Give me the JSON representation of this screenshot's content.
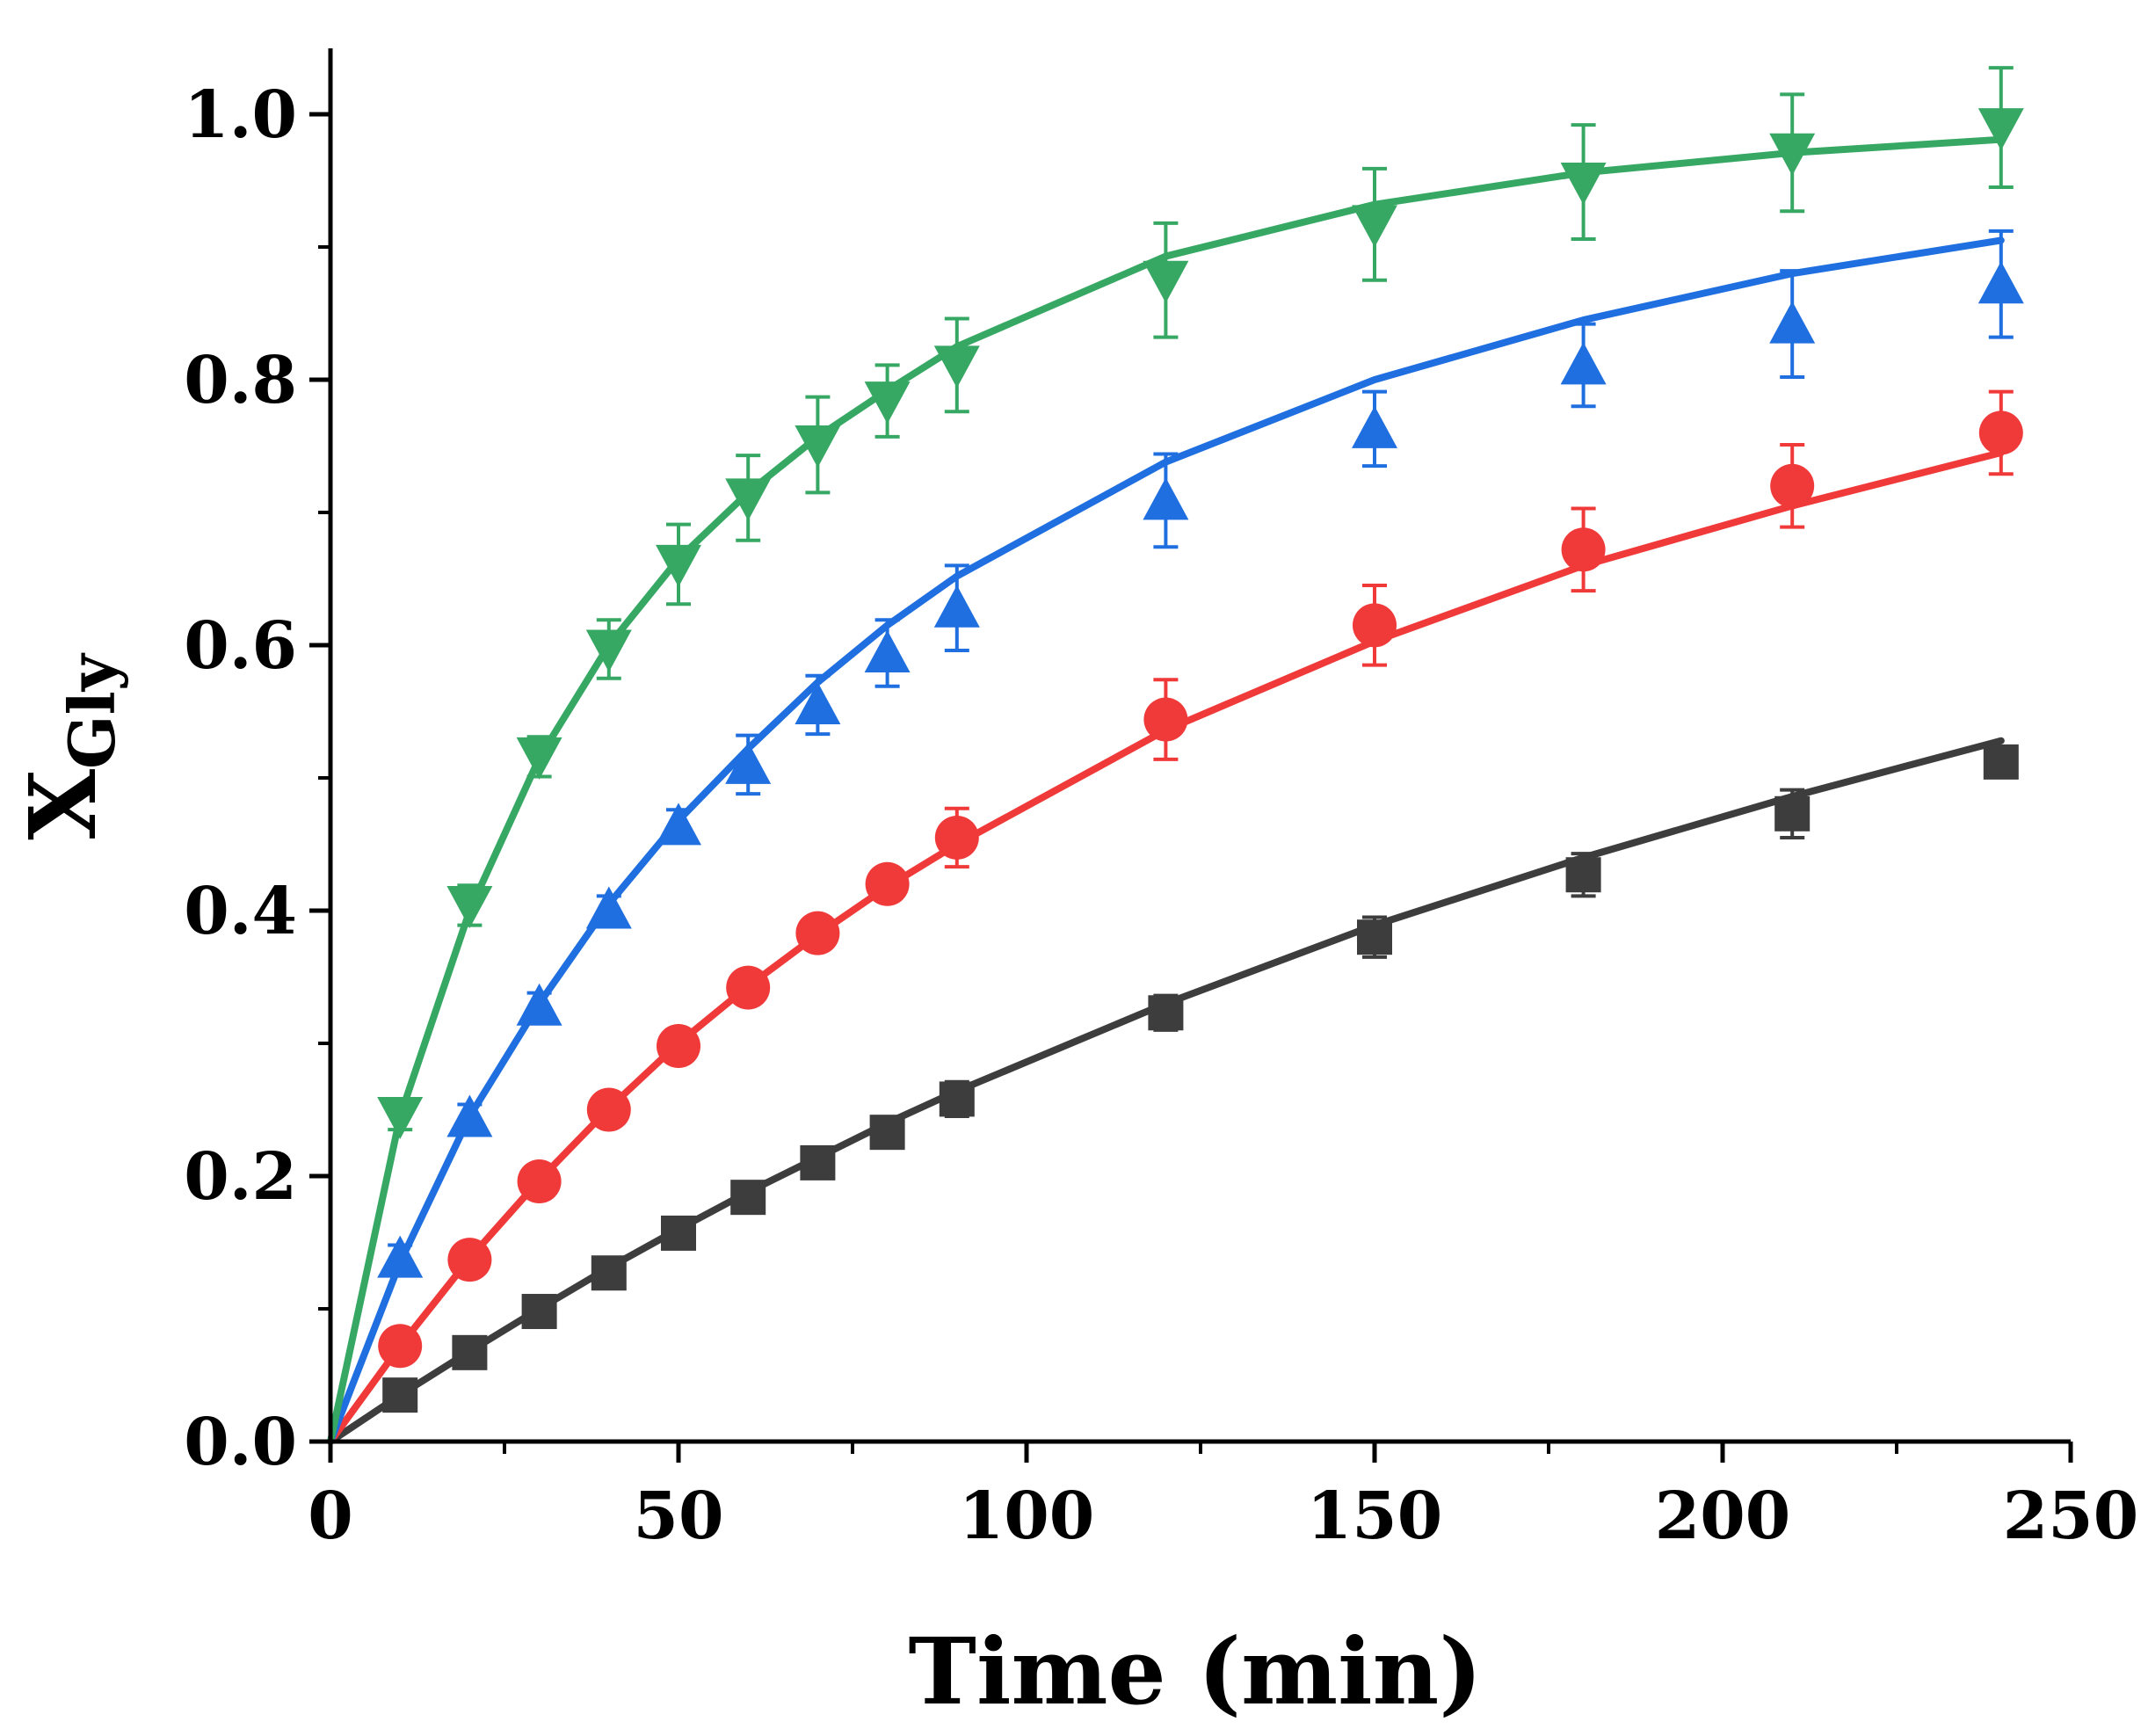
{
  "chart_data": {
    "type": "line",
    "title": "",
    "xlabel": "Time (min)",
    "ylabel": {
      "main": "X",
      "sub": "Gly"
    },
    "xlim": [
      0,
      250
    ],
    "ylim": [
      0,
      1.05
    ],
    "x_major_ticks": [
      0,
      50,
      100,
      150,
      200,
      250
    ],
    "x_tick_labels": [
      "0",
      "50",
      "100",
      "150",
      "200",
      "250"
    ],
    "y_major_ticks": [
      0,
      0.2,
      0.4,
      0.6,
      0.8,
      1.0
    ],
    "y_tick_labels": [
      "0.0",
      "0.2",
      "0.4",
      "0.6",
      "0.8",
      "1.0"
    ],
    "grid": false,
    "legend": "none",
    "series": [
      {
        "name": "series-black",
        "color": "#3d3d3d",
        "marker": "square",
        "x": [
          10,
          20,
          30,
          40,
          50,
          60,
          70,
          80,
          90,
          120,
          150,
          180,
          210,
          240
        ],
        "y": [
          0.035,
          0.067,
          0.098,
          0.127,
          0.157,
          0.184,
          0.21,
          0.233,
          0.258,
          0.323,
          0.38,
          0.427,
          0.473,
          0.512
        ],
        "err": [
          0.01,
          0.01,
          0.01,
          0.01,
          0.01,
          0.01,
          0.01,
          0.01,
          0.013,
          0.013,
          0.015,
          0.016,
          0.018,
          0.01
        ],
        "fit_x": [
          0,
          10,
          20,
          30,
          40,
          50,
          60,
          70,
          80,
          90,
          120,
          150,
          180,
          210,
          240
        ],
        "fit_y": [
          0,
          0.035,
          0.068,
          0.1,
          0.131,
          0.16,
          0.188,
          0.214,
          0.24,
          0.264,
          0.33,
          0.389,
          0.44,
          0.486,
          0.528
        ]
      },
      {
        "name": "series-red",
        "color": "#f03a3a",
        "marker": "circle",
        "x": [
          10,
          20,
          30,
          40,
          50,
          60,
          70,
          80,
          90,
          120,
          150,
          180,
          210,
          240
        ],
        "y": [
          0.072,
          0.137,
          0.196,
          0.25,
          0.298,
          0.342,
          0.383,
          0.42,
          0.455,
          0.544,
          0.615,
          0.672,
          0.72,
          0.76
        ],
        "err": [
          0.01,
          0.01,
          0.01,
          0.01,
          0.01,
          0.012,
          0.01,
          0.01,
          0.022,
          0.03,
          0.03,
          0.031,
          0.031,
          0.031
        ],
        "fit_x": [
          0,
          10,
          20,
          30,
          40,
          50,
          60,
          70,
          80,
          90,
          120,
          150,
          180,
          210,
          240
        ],
        "fit_y": [
          0,
          0.072,
          0.138,
          0.197,
          0.251,
          0.3,
          0.343,
          0.382,
          0.418,
          0.45,
          0.536,
          0.603,
          0.66,
          0.705,
          0.745
        ]
      },
      {
        "name": "series-blue",
        "color": "#1f6fe0",
        "marker": "triangle-up",
        "x": [
          10,
          20,
          30,
          40,
          50,
          60,
          70,
          80,
          90,
          120,
          150,
          180,
          210,
          240
        ],
        "y": [
          0.138,
          0.244,
          0.328,
          0.401,
          0.464,
          0.51,
          0.555,
          0.594,
          0.628,
          0.709,
          0.763,
          0.811,
          0.842,
          0.872
        ],
        "err": [
          0.01,
          0.01,
          0.01,
          0.01,
          0.012,
          0.022,
          0.022,
          0.025,
          0.032,
          0.035,
          0.028,
          0.031,
          0.04,
          0.04
        ],
        "fit_x": [
          0,
          10,
          20,
          30,
          40,
          50,
          60,
          70,
          80,
          90,
          120,
          150,
          180,
          210,
          240
        ],
        "fit_y": [
          0,
          0.135,
          0.245,
          0.33,
          0.405,
          0.468,
          0.522,
          0.572,
          0.615,
          0.652,
          0.738,
          0.8,
          0.845,
          0.88,
          0.905
        ]
      },
      {
        "name": "series-green",
        "color": "#37a864",
        "marker": "triangle-down",
        "x": [
          10,
          20,
          30,
          40,
          50,
          60,
          70,
          80,
          90,
          120,
          150,
          180,
          210,
          240
        ],
        "y": [
          0.245,
          0.404,
          0.516,
          0.597,
          0.661,
          0.711,
          0.751,
          0.784,
          0.811,
          0.875,
          0.917,
          0.949,
          0.971,
          0.99
        ],
        "err": [
          0.01,
          0.015,
          0.015,
          0.022,
          0.03,
          0.032,
          0.036,
          0.027,
          0.035,
          0.043,
          0.042,
          0.043,
          0.044,
          0.045
        ],
        "fit_x": [
          0,
          10,
          20,
          30,
          40,
          50,
          60,
          70,
          80,
          90,
          120,
          150,
          180,
          210,
          240
        ],
        "fit_y": [
          0,
          0.245,
          0.4,
          0.515,
          0.6,
          0.665,
          0.715,
          0.757,
          0.792,
          0.825,
          0.893,
          0.932,
          0.956,
          0.971,
          0.981
        ]
      }
    ]
  }
}
